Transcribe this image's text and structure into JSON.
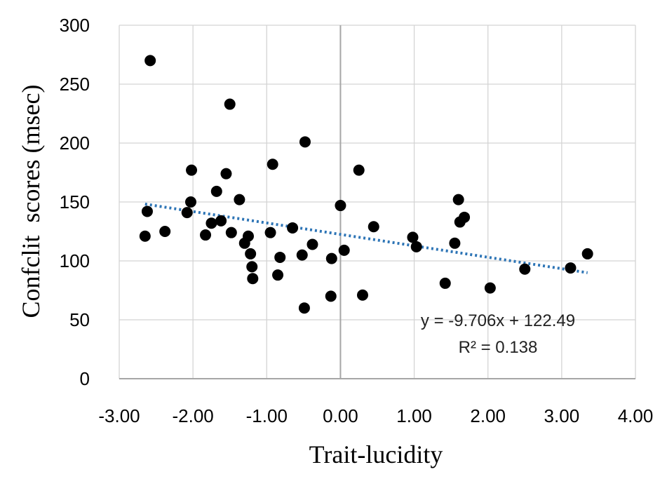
{
  "chart_data": {
    "type": "scatter",
    "xlabel": "Trait-lucidity",
    "ylabel": "Confclit  scores (msec)",
    "xlim": [
      -3,
      4
    ],
    "ylim": [
      0,
      300
    ],
    "x_tick_labels": [
      "-3.00",
      "-2.00",
      "-1.00",
      "0.00",
      "1.00",
      "2.00",
      "3.00",
      "4.00"
    ],
    "y_tick_labels": [
      "0",
      "50",
      "100",
      "150",
      "200",
      "250",
      "300"
    ],
    "grid": true,
    "points": [
      {
        "x": -2.58,
        "y": 270
      },
      {
        "x": -2.62,
        "y": 142
      },
      {
        "x": -2.65,
        "y": 121
      },
      {
        "x": -2.38,
        "y": 125
      },
      {
        "x": -2.02,
        "y": 177
      },
      {
        "x": -2.03,
        "y": 150
      },
      {
        "x": -2.08,
        "y": 141
      },
      {
        "x": -1.83,
        "y": 122
      },
      {
        "x": -1.75,
        "y": 132
      },
      {
        "x": -1.68,
        "y": 159
      },
      {
        "x": -1.62,
        "y": 134
      },
      {
        "x": -1.55,
        "y": 174
      },
      {
        "x": -1.5,
        "y": 233
      },
      {
        "x": -1.48,
        "y": 124
      },
      {
        "x": -1.37,
        "y": 152
      },
      {
        "x": -1.3,
        "y": 115
      },
      {
        "x": -1.25,
        "y": 121
      },
      {
        "x": -1.22,
        "y": 106
      },
      {
        "x": -1.2,
        "y": 95
      },
      {
        "x": -1.19,
        "y": 85
      },
      {
        "x": -0.95,
        "y": 124
      },
      {
        "x": -0.92,
        "y": 182
      },
      {
        "x": -0.85,
        "y": 88
      },
      {
        "x": -0.82,
        "y": 103
      },
      {
        "x": -0.65,
        "y": 128
      },
      {
        "x": -0.52,
        "y": 105
      },
      {
        "x": -0.48,
        "y": 201
      },
      {
        "x": -0.49,
        "y": 60
      },
      {
        "x": -0.38,
        "y": 114
      },
      {
        "x": -0.12,
        "y": 102
      },
      {
        "x": -0.13,
        "y": 70
      },
      {
        "x": 0.0,
        "y": 147
      },
      {
        "x": 0.05,
        "y": 109
      },
      {
        "x": 0.25,
        "y": 177
      },
      {
        "x": 0.3,
        "y": 71
      },
      {
        "x": 0.45,
        "y": 129
      },
      {
        "x": 0.98,
        "y": 120
      },
      {
        "x": 1.03,
        "y": 112
      },
      {
        "x": 1.42,
        "y": 81
      },
      {
        "x": 1.55,
        "y": 115
      },
      {
        "x": 1.6,
        "y": 152
      },
      {
        "x": 1.62,
        "y": 133
      },
      {
        "x": 1.68,
        "y": 137
      },
      {
        "x": 2.03,
        "y": 77
      },
      {
        "x": 2.5,
        "y": 93
      },
      {
        "x": 3.12,
        "y": 94
      },
      {
        "x": 3.35,
        "y": 106
      }
    ],
    "trendline": {
      "slope": -9.706,
      "intercept": 122.49,
      "x_range": [
        -2.65,
        3.35
      ],
      "style": "dotted",
      "color": "#2e75b6"
    },
    "annotation": {
      "equation": "y = -9.706x + 122.49",
      "r_squared": "R² = 0.138"
    }
  }
}
